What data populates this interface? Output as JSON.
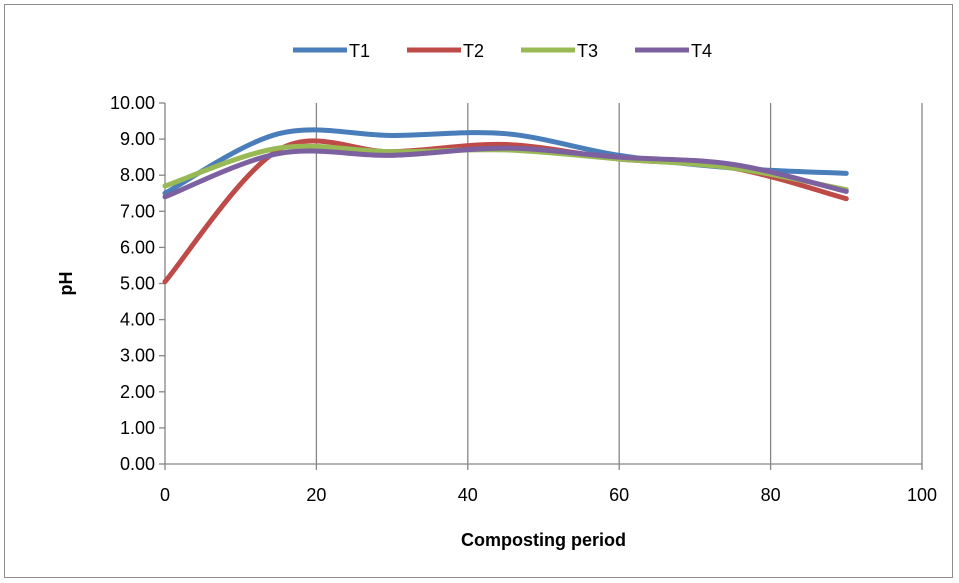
{
  "chart_data": {
    "type": "line",
    "title": "",
    "xlabel": "Composting period",
    "ylabel": "pH",
    "xlim": [
      0,
      100
    ],
    "ylim": [
      0,
      10
    ],
    "x_ticks": [
      "0",
      "20",
      "40",
      "60",
      "80",
      "100"
    ],
    "y_ticks": [
      "0.00",
      "1.00",
      "2.00",
      "3.00",
      "4.00",
      "5.00",
      "6.00",
      "7.00",
      "8.00",
      "9.00",
      "10.00"
    ],
    "grid": "vertical major gridlines",
    "legend_position": "top",
    "smoothed": true,
    "series": [
      {
        "name": "T1",
        "color": "#4a7ebb",
        "points": [
          [
            0,
            7.5
          ],
          [
            15,
            9.15
          ],
          [
            30,
            9.1
          ],
          [
            45,
            9.15
          ],
          [
            60,
            8.55
          ],
          [
            75,
            8.2
          ],
          [
            90,
            8.05
          ]
        ]
      },
      {
        "name": "T2",
        "color": "#be4b48",
        "points": [
          [
            0,
            5.05
          ],
          [
            15,
            8.7
          ],
          [
            30,
            8.65
          ],
          [
            45,
            8.85
          ],
          [
            60,
            8.45
          ],
          [
            75,
            8.2
          ],
          [
            90,
            7.35
          ]
        ]
      },
      {
        "name": "T3",
        "color": "#98b954",
        "points": [
          [
            0,
            7.7
          ],
          [
            15,
            8.75
          ],
          [
            30,
            8.65
          ],
          [
            45,
            8.7
          ],
          [
            60,
            8.45
          ],
          [
            75,
            8.2
          ],
          [
            90,
            7.6
          ]
        ]
      },
      {
        "name": "T4",
        "color": "#7d60a0",
        "points": [
          [
            0,
            7.4
          ],
          [
            15,
            8.6
          ],
          [
            30,
            8.55
          ],
          [
            45,
            8.75
          ],
          [
            60,
            8.5
          ],
          [
            75,
            8.3
          ],
          [
            90,
            7.55
          ]
        ]
      }
    ]
  }
}
